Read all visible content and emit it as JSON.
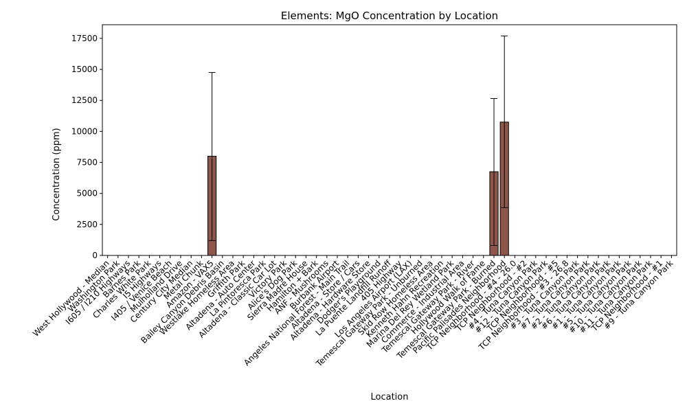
{
  "chart_data": {
    "type": "bar",
    "title": "Elements: MgO Concentration by Location",
    "xlabel": "Location",
    "ylabel": "Concentration (ppm)",
    "ylim": [
      0,
      18600
    ],
    "yticks": [
      0,
      2500,
      5000,
      7500,
      10000,
      12500,
      15000,
      17500
    ],
    "ytick_labels": [
      "0",
      "2500",
      "5000",
      "7500",
      "10000",
      "12500",
      "15000",
      "17500"
    ],
    "bar_color": "#8c564b",
    "categories": [
      "West Hollywood - Median",
      "Washington Park",
      "I605 / I210 Highways",
      "Barnes Park",
      "Charles White Park",
      "I5 Highways",
      "I405 / Venice Beach",
      "Mulholland Drive",
      "Century City Median",
      "Metal Chunk",
      "Amazon - VAX5",
      "Bailey Canyon Debris Basin",
      "Westlake Homeless Area",
      "Griffith Park",
      "Altadena - Auto Center",
      "La Pintoresca Park",
      "Altadena - Classic Car Lot",
      "Victory Park",
      "Alice's Dog Park",
      "Sierra Madre House",
      "Hamilton + Bark",
      "ANF - Mushrooms",
      "Burbank Airport",
      "Angeles National Forest - Main Trail",
      "Altadena - Store / Cars",
      "Altadena - Hardware Store",
      "Dodger's Playground",
      "La Puente Landfill Runoff",
      "405 Highway",
      "Los Angeles Airport (LAX)",
      "Temescal Gateway Park - Unburned",
      "Skid Row Homeless Area",
      "Kenneth Hahn Recreation",
      "Marina Del Rey Wetland Park",
      "Commerce - Industrial Area",
      "Temescal Gateway Park - River",
      "Hollywood Walk of Fame",
      "Temescal Gateway Park - Burned",
      "Pacific Palisades Neighborhood",
      "TCP Neighborhood - #4 - 26.0",
      "TCP Neighborhood - #2",
      "#4 - Tuna Canyon Park",
      "#12 - Tuna Canyon Park",
      "TCP Neighborhood - #5",
      "TCP Neighborhood - #3 - 26.8",
      "#3 - Tuna Canyon Park",
      "#7 - Tuna Canyon Park",
      "#2 - Tuna Canyon Park",
      "#6 - Tuna Canyon Park",
      "#1 - Tuna Canyon Park",
      "#5 - Tuna Canyon Park",
      "#10 - Tuna Canyon Park",
      "#11 - Tuna Canyon Park",
      "TCP Neighborhood - #1",
      "#9 - Tuna Canyon Park"
    ],
    "values": [
      0,
      0,
      0,
      0,
      0,
      0,
      0,
      0,
      0,
      0,
      8000,
      0,
      0,
      0,
      0,
      0,
      0,
      0,
      0,
      0,
      0,
      0,
      0,
      0,
      0,
      0,
      0,
      0,
      0,
      0,
      0,
      0,
      0,
      0,
      0,
      0,
      0,
      6750,
      10750,
      0,
      0,
      0,
      0,
      0,
      0,
      0,
      0,
      0,
      0,
      0,
      0,
      0,
      0,
      0,
      0
    ],
    "error_low": [
      0,
      0,
      0,
      0,
      0,
      0,
      0,
      0,
      0,
      0,
      1200,
      0,
      0,
      0,
      0,
      0,
      0,
      0,
      0,
      0,
      0,
      0,
      0,
      0,
      0,
      0,
      0,
      0,
      0,
      0,
      0,
      0,
      0,
      0,
      0,
      0,
      0,
      800,
      3850,
      0,
      0,
      0,
      0,
      0,
      0,
      0,
      0,
      0,
      0,
      0,
      0,
      0,
      0,
      0,
      0
    ],
    "error_high": [
      0,
      0,
      0,
      0,
      0,
      0,
      0,
      0,
      0,
      0,
      14750,
      0,
      0,
      0,
      0,
      0,
      0,
      0,
      0,
      0,
      0,
      0,
      0,
      0,
      0,
      0,
      0,
      0,
      0,
      0,
      0,
      0,
      0,
      0,
      0,
      0,
      0,
      12650,
      17700,
      0,
      0,
      0,
      0,
      0,
      0,
      0,
      0,
      0,
      0,
      0,
      0,
      0,
      0,
      0,
      0
    ],
    "grid": false,
    "legend": "none"
  }
}
